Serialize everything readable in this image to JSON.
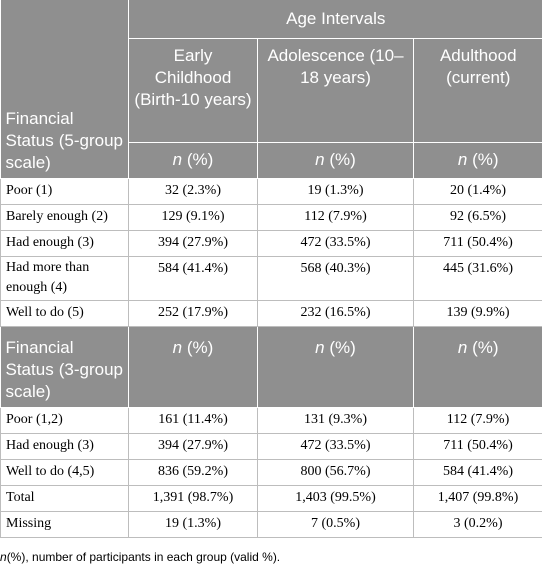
{
  "header": {
    "group": "Age Intervals",
    "row_label": "Financial Status (5-group scale)",
    "columns": [
      "Early Childhood (Birth-10 years)",
      "Adolescence (10–18 years)",
      "Adulthood (current)"
    ],
    "unit": [
      "n",
      "(%)"
    ]
  },
  "sections": [
    {
      "rows": [
        {
          "label": "Poor (1)",
          "cells": [
            "32 (2.3%)",
            "19 (1.3%)",
            "20 (1.4%)"
          ]
        },
        {
          "label": "Barely enough (2)",
          "cells": [
            "129 (9.1%)",
            "112 (7.9%)",
            "92 (6.5%)"
          ]
        },
        {
          "label": "Had enough (3)",
          "cells": [
            "394 (27.9%)",
            "472 (33.5%)",
            "711 (50.4%)"
          ]
        },
        {
          "label": "Had more than enough (4)",
          "cells": [
            "584 (41.4%)",
            "568 (40.3%)",
            "445 (31.6%)"
          ]
        },
        {
          "label": "Well to do (5)",
          "cells": [
            "252 (17.9%)",
            "232 (16.5%)",
            "139 (9.9%)"
          ]
        }
      ]
    },
    {
      "label": "Financial Status (3-group scale)",
      "unit": [
        "n",
        "(%)"
      ],
      "rows": [
        {
          "label": "Poor (1,2)",
          "cells": [
            "161 (11.4%)",
            "131 (9.3%)",
            "112 (7.9%)"
          ]
        },
        {
          "label": "Had enough (3)",
          "cells": [
            "394 (27.9%)",
            "472 (33.5%)",
            "711 (50.4%)"
          ]
        },
        {
          "label": "Well to do (4,5)",
          "cells": [
            "836 (59.2%)",
            "800 (56.7%)",
            "584 (41.4%)"
          ]
        },
        {
          "label": "Total",
          "cells": [
            "1,391 (98.7%)",
            "1,403 (99.5%)",
            "1,407 (99.8%)"
          ]
        },
        {
          "label": "Missing",
          "cells": [
            "19 (1.3%)",
            "7 (0.5%)",
            "3 (0.2%)"
          ]
        }
      ]
    }
  ],
  "footnote": {
    "symbol": "n",
    "text": "(%), number of participants in each group (valid %)."
  }
}
